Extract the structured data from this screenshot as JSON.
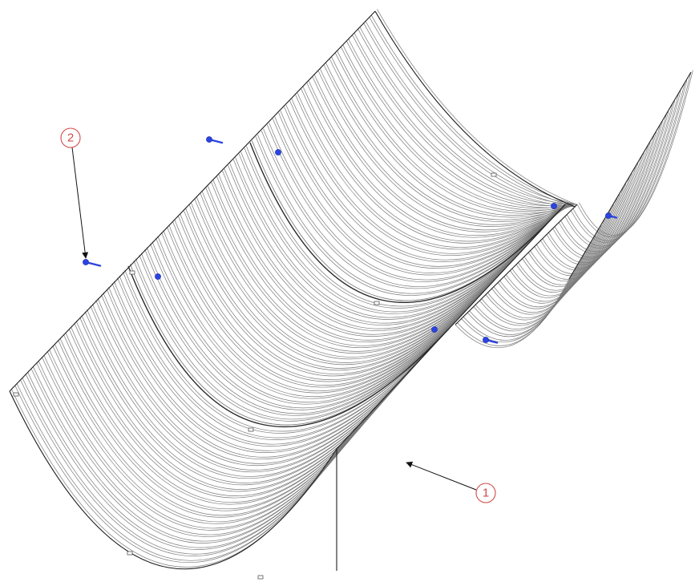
{
  "callouts": [
    {
      "id": "1",
      "label": "1"
    },
    {
      "id": "2",
      "label": "2"
    }
  ],
  "colors": {
    "line": "#3c3c3c",
    "balloon": "#d04a4a",
    "fastener": "#2b44e0"
  },
  "icons": {
    "fastener": "bolt-icon"
  }
}
